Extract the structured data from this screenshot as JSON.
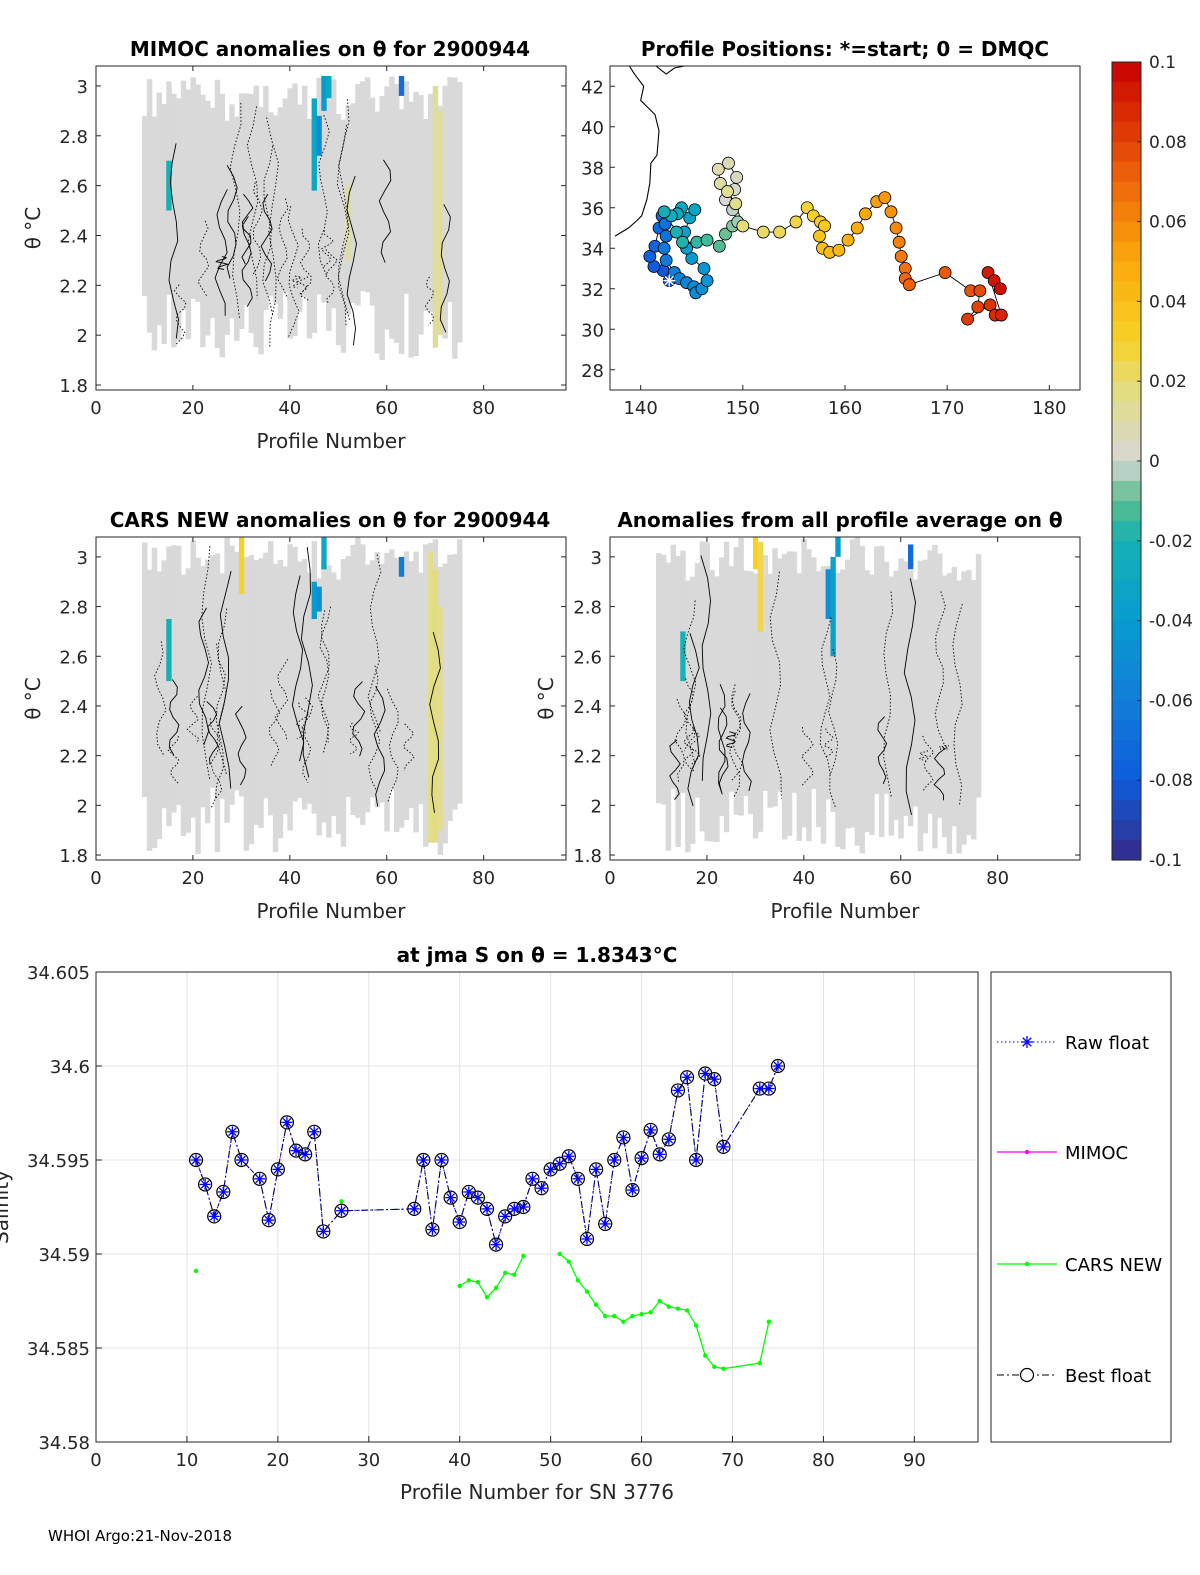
{
  "footer": "WHOI Argo:21-Nov-2018",
  "colors": {
    "raw_float": "#0000ff",
    "mimoc": "#ff00ff",
    "cars_new": "#00ff00",
    "best_float": "#000000",
    "field_background": "#d9d9d9"
  },
  "chart_data": [
    {
      "id": "mimoc-anomaly",
      "type": "heatmap",
      "title": "MIMOC anomalies on θ  for 2900944",
      "xlabel": "Profile Number",
      "ylabel": "θ °C",
      "xlim": [
        0,
        97
      ],
      "ylim": [
        1.78,
        3.08
      ],
      "xticks": [
        0,
        20,
        40,
        60,
        80
      ],
      "yticks": [
        1.8,
        2,
        2.2,
        2.4,
        2.6,
        2.8,
        3
      ],
      "ytick_labels": [
        "1.8",
        "2",
        "2.2",
        "2.4",
        "2.6",
        "2.8",
        "3"
      ],
      "profile_range": [
        10,
        75
      ],
      "theta_range": [
        1.9,
        3.04
      ],
      "strips": [
        {
          "x": 45,
          "t0": 2.58,
          "t1": 2.95,
          "v": -0.03
        },
        {
          "x": 46,
          "t0": 2.72,
          "t1": 2.88,
          "v": -0.05
        },
        {
          "x": 47,
          "t0": 2.9,
          "t1": 3.04,
          "v": -0.04
        },
        {
          "x": 48,
          "t0": 2.95,
          "t1": 3.04,
          "v": -0.03
        },
        {
          "x": 63,
          "t0": 2.96,
          "t1": 3.04,
          "v": -0.07
        },
        {
          "x": 70,
          "t0": 1.95,
          "t1": 3.0,
          "v": 0.013
        },
        {
          "x": 71,
          "t0": 2.0,
          "t1": 2.9,
          "v": 0.012
        },
        {
          "x": 15,
          "t0": 2.5,
          "t1": 2.7,
          "v": -0.02
        },
        {
          "x": 52,
          "t0": 2.3,
          "t1": 2.6,
          "v": 0.01
        }
      ]
    },
    {
      "id": "cars-anomaly",
      "type": "heatmap",
      "title": "CARS NEW anomalies on θ for 2900944",
      "xlabel": "Profile Number",
      "ylabel": "θ °C",
      "xlim": [
        0,
        97
      ],
      "ylim": [
        1.78,
        3.08
      ],
      "xticks": [
        0,
        20,
        40,
        60,
        80
      ],
      "yticks": [
        1.8,
        2,
        2.2,
        2.4,
        2.6,
        2.8,
        3
      ],
      "ytick_labels": [
        "1.8",
        "2",
        "2.2",
        "2.4",
        "2.6",
        "2.8",
        "3"
      ],
      "profile_range": [
        10,
        75
      ],
      "theta_range": [
        1.8,
        3.08
      ],
      "strips": [
        {
          "x": 30,
          "t0": 2.85,
          "t1": 3.08,
          "v": 0.03
        },
        {
          "x": 45,
          "t0": 2.75,
          "t1": 2.9,
          "v": -0.04
        },
        {
          "x": 46,
          "t0": 2.78,
          "t1": 2.88,
          "v": -0.05
        },
        {
          "x": 47,
          "t0": 2.95,
          "t1": 3.08,
          "v": -0.03
        },
        {
          "x": 63,
          "t0": 2.92,
          "t1": 3.0,
          "v": -0.06
        },
        {
          "x": 69,
          "t0": 1.85,
          "t1": 3.02,
          "v": 0.016
        },
        {
          "x": 70,
          "t0": 1.85,
          "t1": 2.95,
          "v": 0.018
        },
        {
          "x": 71,
          "t0": 1.9,
          "t1": 2.8,
          "v": 0.014
        },
        {
          "x": 15,
          "t0": 2.5,
          "t1": 2.75,
          "v": -0.02
        }
      ]
    },
    {
      "id": "profile-average-anomaly",
      "type": "heatmap",
      "title": "Anomalies from all profile average on θ",
      "xlabel": "Profile Number",
      "ylabel": "θ °C",
      "xlim": [
        0,
        97
      ],
      "ylim": [
        1.78,
        3.08
      ],
      "xticks": [
        0,
        20,
        40,
        60,
        80
      ],
      "yticks": [
        1.8,
        2,
        2.2,
        2.4,
        2.6,
        2.8,
        3
      ],
      "ytick_labels": [
        "1.8",
        "2",
        "2.2",
        "2.4",
        "2.6",
        "2.8",
        "3"
      ],
      "profile_range": [
        10,
        76
      ],
      "theta_range": [
        1.8,
        3.08
      ],
      "strips": [
        {
          "x": 30,
          "t0": 2.95,
          "t1": 3.08,
          "v": 0.03
        },
        {
          "x": 31,
          "t0": 2.7,
          "t1": 3.06,
          "v": 0.025
        },
        {
          "x": 45,
          "t0": 2.75,
          "t1": 2.95,
          "v": -0.05
        },
        {
          "x": 46,
          "t0": 2.6,
          "t1": 3.0,
          "v": -0.035
        },
        {
          "x": 47,
          "t0": 3.0,
          "t1": 3.08,
          "v": -0.04
        },
        {
          "x": 62,
          "t0": 2.95,
          "t1": 3.05,
          "v": -0.07
        },
        {
          "x": 15,
          "t0": 2.5,
          "t1": 2.7,
          "v": -0.02
        }
      ]
    },
    {
      "id": "profile-positions",
      "type": "scatter",
      "title": "Profile Positions: *=start; 0 = DMQC",
      "xlabel": "",
      "ylabel": "",
      "xlim": [
        137,
        183
      ],
      "ylim": [
        27,
        43
      ],
      "xticks": [
        140,
        150,
        160,
        170,
        180
      ],
      "yticks": [
        28,
        30,
        32,
        34,
        36,
        38,
        40,
        42
      ],
      "colorbar": {
        "min": -0.1,
        "max": 0.1,
        "ticks": [
          0.1,
          0.08,
          0.06,
          0.04,
          0.02,
          0,
          -0.02,
          -0.04,
          -0.06,
          -0.08,
          -0.1
        ],
        "tick_labels": [
          "0.1",
          "0.08",
          "0.06",
          "0.04",
          "0.02",
          "0",
          "-0.02",
          "-0.04",
          "-0.06",
          "-0.08",
          "-0.1"
        ]
      },
      "start": {
        "lon": 142.8,
        "lat": 32.4
      },
      "track": [
        [
          142.8,
          32.4
        ],
        [
          142.2,
          32.9
        ],
        [
          141.3,
          33.1
        ],
        [
          140.9,
          33.6
        ],
        [
          141.4,
          34.1
        ],
        [
          141.8,
          35.0
        ],
        [
          142.1,
          35.6
        ],
        [
          142.4,
          35.2
        ],
        [
          142.5,
          34.6
        ],
        [
          142.3,
          34.0
        ],
        [
          142.5,
          33.4
        ],
        [
          143.3,
          32.8
        ],
        [
          143.8,
          32.5
        ],
        [
          144.5,
          32.3
        ],
        [
          145.2,
          32.1
        ],
        [
          145.4,
          31.8
        ],
        [
          146.0,
          32.0
        ],
        [
          146.5,
          32.4
        ],
        [
          146.2,
          33.0
        ],
        [
          145.0,
          33.5
        ],
        [
          144.5,
          34.0
        ],
        [
          144.3,
          34.8
        ],
        [
          144.8,
          35.5
        ],
        [
          145.3,
          35.9
        ],
        [
          144.0,
          36.0
        ],
        [
          143.6,
          35.7
        ],
        [
          143.0,
          35.6
        ],
        [
          142.3,
          35.8
        ],
        [
          143.5,
          34.8
        ],
        [
          144.1,
          34.3
        ],
        [
          145.5,
          34.3
        ],
        [
          146.5,
          34.4
        ],
        [
          147.7,
          34.1
        ],
        [
          148.3,
          34.7
        ],
        [
          149.0,
          35.1
        ],
        [
          149.5,
          35.3
        ],
        [
          149.0,
          35.9
        ],
        [
          148.3,
          36.4
        ],
        [
          149.2,
          36.9
        ],
        [
          149.4,
          37.5
        ],
        [
          148.6,
          38.2
        ],
        [
          147.6,
          37.9
        ],
        [
          147.8,
          37.2
        ],
        [
          148.5,
          36.8
        ],
        [
          149.3,
          36.2
        ],
        [
          150.0,
          35.1
        ],
        [
          152.0,
          34.8
        ],
        [
          153.6,
          34.8
        ],
        [
          155.2,
          35.3
        ],
        [
          156.3,
          36.0
        ],
        [
          156.9,
          35.6
        ],
        [
          157.6,
          35.3
        ],
        [
          158.0,
          35.1
        ],
        [
          157.5,
          34.6
        ],
        [
          157.8,
          34.0
        ],
        [
          158.5,
          33.8
        ],
        [
          159.4,
          33.9
        ],
        [
          160.3,
          34.4
        ],
        [
          161.2,
          35.0
        ],
        [
          162.0,
          35.7
        ],
        [
          163.1,
          36.3
        ],
        [
          163.9,
          36.5
        ],
        [
          164.5,
          35.8
        ],
        [
          165.0,
          35.0
        ],
        [
          165.3,
          34.3
        ],
        [
          165.5,
          33.6
        ],
        [
          165.9,
          33.0
        ],
        [
          165.9,
          32.5
        ],
        [
          166.3,
          32.2
        ],
        [
          169.8,
          32.8
        ],
        [
          172.3,
          31.9
        ],
        [
          173.2,
          31.9
        ],
        [
          173.0,
          31.1
        ],
        [
          172.0,
          30.5
        ],
        [
          174.2,
          31.2
        ],
        [
          174.7,
          30.7
        ],
        [
          175.3,
          30.7
        ],
        [
          174.0,
          32.8
        ],
        [
          174.6,
          32.4
        ],
        [
          175.2,
          32.0
        ]
      ]
    },
    {
      "id": "salinity-series",
      "type": "line",
      "title": "at jma S on θ = 1.8343°C",
      "xlabel": "Profile Number for SN 3776",
      "ylabel": "Salinity",
      "xlim": [
        0,
        97
      ],
      "ylim": [
        34.58,
        34.605
      ],
      "xticks": [
        0,
        10,
        20,
        30,
        40,
        50,
        60,
        70,
        80,
        90
      ],
      "yticks": [
        34.58,
        34.585,
        34.59,
        34.595,
        34.6,
        34.605
      ],
      "ytick_labels": [
        "34.58",
        "34.585",
        "34.59",
        "34.595",
        "34.6",
        "34.605"
      ],
      "legend": [
        "Raw float",
        "MIMOC",
        "CARS NEW",
        "Best float"
      ],
      "legend_position": "outside-right",
      "grid": true,
      "series": [
        {
          "name": "Raw float",
          "x": [
            11,
            12,
            13,
            14,
            15,
            16,
            18,
            19,
            20,
            21,
            22,
            23,
            24,
            25,
            27,
            35,
            36,
            37,
            38,
            39,
            40,
            41,
            42,
            43,
            44,
            45,
            46,
            47,
            48,
            49,
            50,
            51,
            52,
            53,
            54,
            55,
            56,
            57,
            58,
            59,
            60,
            61,
            62,
            63,
            64,
            65,
            66,
            67,
            68,
            69,
            73,
            74,
            75
          ],
          "values": [
            34.595,
            34.5937,
            34.592,
            34.5933,
            34.5965,
            34.595,
            34.594,
            34.5918,
            34.5945,
            34.597,
            34.5955,
            34.5953,
            34.5965,
            34.5912,
            34.5923,
            34.5924,
            34.595,
            34.5913,
            34.595,
            34.593,
            34.5917,
            34.5933,
            34.593,
            34.5924,
            34.5905,
            34.592,
            34.5924,
            34.5925,
            34.594,
            34.5935,
            34.5945,
            34.5948,
            34.5952,
            34.594,
            34.5908,
            34.5945,
            34.5916,
            34.595,
            34.5962,
            34.5934,
            34.5951,
            34.5966,
            34.5953,
            34.5961,
            34.5987,
            34.5994,
            34.595,
            34.5996,
            34.5993,
            34.5957,
            34.5988,
            34.5988,
            34.6
          ]
        },
        {
          "name": "MIMOC",
          "x": [],
          "values": []
        },
        {
          "name": "CARS NEW",
          "segments": [
            {
              "x": [
                11
              ],
              "values": [
                34.5891
              ]
            },
            {
              "x": [
                27
              ],
              "values": [
                34.5928
              ]
            },
            {
              "x": [
                40,
                41,
                42,
                43,
                44,
                45,
                46,
                47
              ],
              "values": [
                34.5883,
                34.5886,
                34.5885,
                34.5877,
                34.5882,
                34.589,
                34.5889,
                34.5899
              ]
            },
            {
              "x": [
                51,
                52,
                53,
                54,
                55,
                56,
                57,
                58,
                59,
                60,
                61,
                62,
                63,
                64,
                65,
                66,
                67,
                68,
                69,
                73,
                74
              ],
              "values": [
                34.59,
                34.5896,
                34.5886,
                34.588,
                34.5873,
                34.5867,
                34.5867,
                34.5864,
                34.5867,
                34.5868,
                34.5869,
                34.5875,
                34.5872,
                34.5871,
                34.587,
                34.5862,
                34.5846,
                34.584,
                34.5839,
                34.5842,
                34.5864
              ]
            }
          ]
        },
        {
          "name": "Best float",
          "x": [
            11,
            12,
            13,
            14,
            15,
            16,
            18,
            19,
            20,
            21,
            22,
            23,
            24,
            25,
            27,
            35,
            36,
            37,
            38,
            39,
            40,
            41,
            42,
            43,
            44,
            45,
            46,
            47,
            48,
            49,
            50,
            51,
            52,
            53,
            54,
            55,
            56,
            57,
            58,
            59,
            60,
            61,
            62,
            63,
            64,
            65,
            66,
            67,
            68,
            69,
            73,
            74,
            75
          ],
          "values": [
            34.595,
            34.5937,
            34.592,
            34.5933,
            34.5965,
            34.595,
            34.594,
            34.5918,
            34.5945,
            34.597,
            34.5955,
            34.5953,
            34.5965,
            34.5912,
            34.5923,
            34.5924,
            34.595,
            34.5913,
            34.595,
            34.593,
            34.5917,
            34.5933,
            34.593,
            34.5924,
            34.5905,
            34.592,
            34.5924,
            34.5925,
            34.594,
            34.5935,
            34.5945,
            34.5948,
            34.5952,
            34.594,
            34.5908,
            34.5945,
            34.5916,
            34.595,
            34.5962,
            34.5934,
            34.5951,
            34.5966,
            34.5953,
            34.5961,
            34.5987,
            34.5994,
            34.595,
            34.5996,
            34.5993,
            34.5957,
            34.5988,
            34.5988,
            34.6
          ]
        }
      ]
    }
  ]
}
